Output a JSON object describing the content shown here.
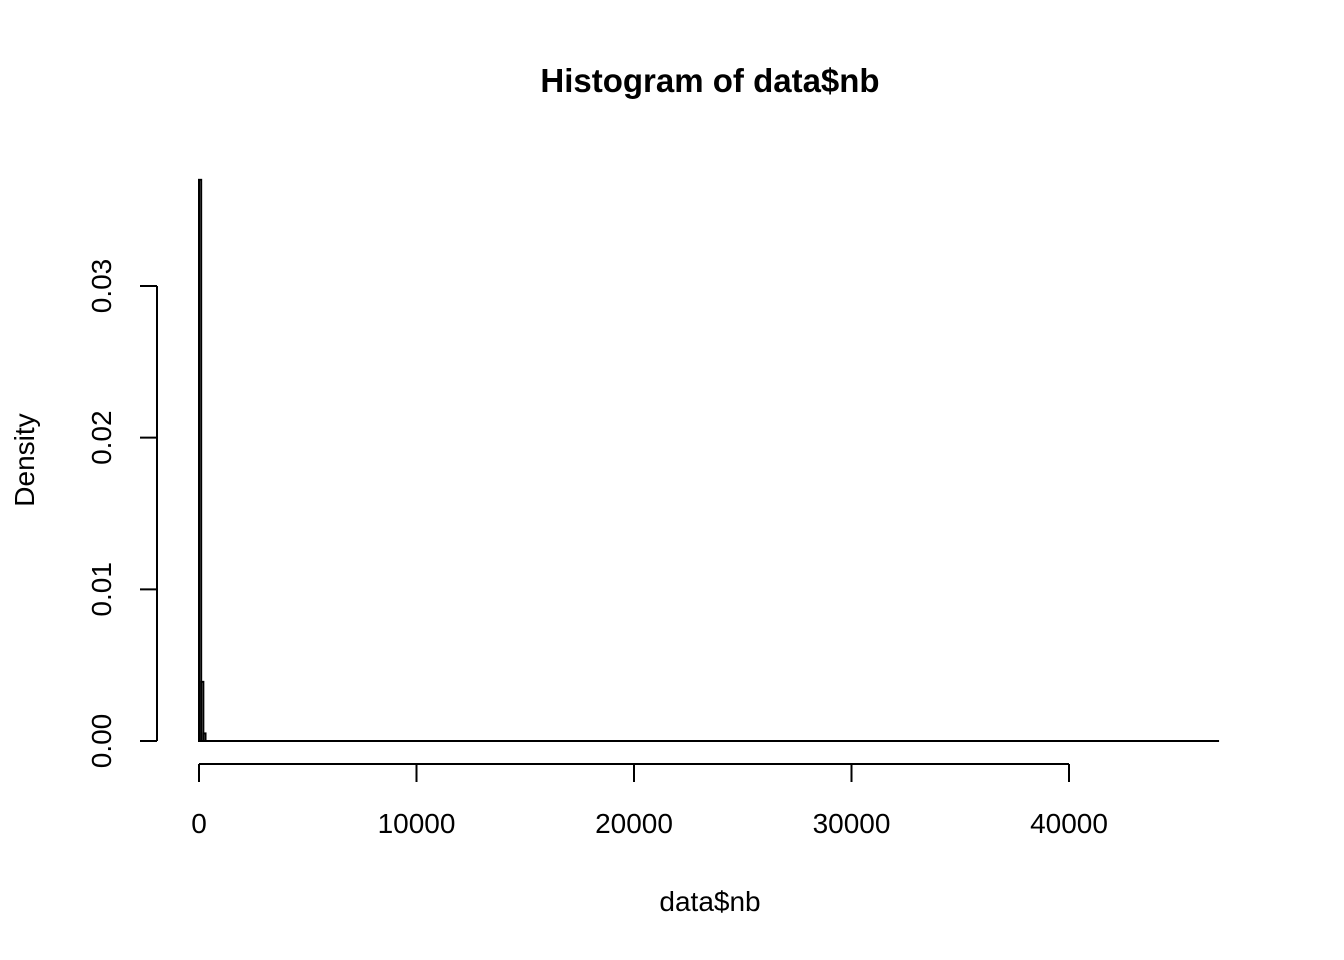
{
  "chart_data": {
    "type": "bar",
    "title": "Histogram of data$nb",
    "xlabel": "data$nb",
    "ylabel": "Density",
    "xlim": [
      0,
      46500
    ],
    "ylim": [
      0,
      0.03
    ],
    "x_ticks": [
      0,
      10000,
      20000,
      30000,
      40000
    ],
    "x_tick_labels": [
      "0",
      "10000",
      "20000",
      "30000",
      "40000"
    ],
    "y_ticks": [
      0,
      0.01,
      0.02,
      0.03
    ],
    "y_tick_labels": [
      "0.00",
      "0.01",
      "0.02",
      "0.03"
    ],
    "bin_width": 100,
    "bins": [
      {
        "start": 0,
        "end": 100,
        "density": 0.037
      },
      {
        "start": 100,
        "end": 200,
        "density": 0.0039
      },
      {
        "start": 200,
        "end": 300,
        "density": 0.0005
      }
    ],
    "baseline_end": 46900,
    "grid": false,
    "legend": "none"
  }
}
